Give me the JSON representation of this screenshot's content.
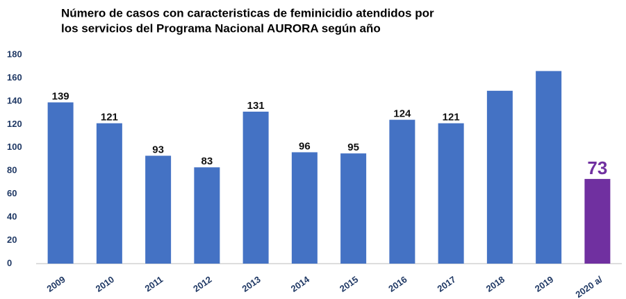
{
  "chart_data": {
    "type": "bar",
    "title": [
      "Número de casos con caracteristicas de feminicidio atendidos por",
      "los servicios del Programa Nacional AURORA según año"
    ],
    "categories": [
      "2009",
      "2010",
      "2011",
      "2012",
      "2013",
      "2014",
      "2015",
      "2016",
      "2017",
      "2018",
      "2019",
      "2020 a/"
    ],
    "values": [
      139,
      121,
      93,
      83,
      131,
      96,
      95,
      124,
      121,
      149,
      166,
      73
    ],
    "value_labels": [
      "139",
      "121",
      "93",
      "83",
      "131",
      "96",
      "95",
      "124",
      "121",
      null,
      null,
      "73"
    ],
    "colors": [
      "#4472c4",
      "#4472c4",
      "#4472c4",
      "#4472c4",
      "#4472c4",
      "#4472c4",
      "#4472c4",
      "#4472c4",
      "#4472c4",
      "#4472c4",
      "#4472c4",
      "#7030a0"
    ],
    "ylim": [
      0,
      180
    ],
    "yticks": [
      0,
      20,
      40,
      60,
      80,
      100,
      120,
      140,
      160,
      180
    ],
    "grid": false
  }
}
